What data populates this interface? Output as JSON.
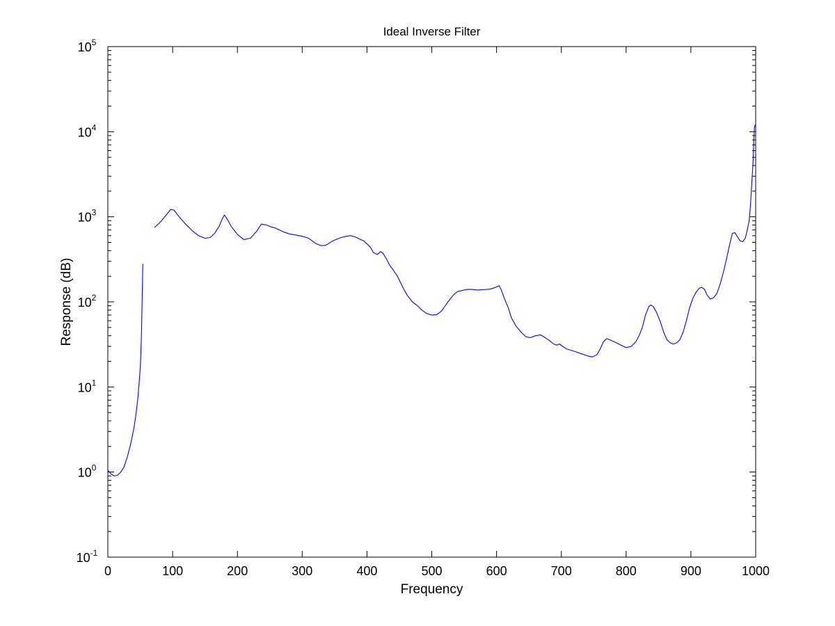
{
  "chart_data": {
    "type": "line",
    "title": "Ideal Inverse Filter",
    "xlabel": "Frequency",
    "ylabel": "Response (dB)",
    "xlim": [
      0,
      1000
    ],
    "ylim": [
      0.1,
      100000
    ],
    "yscale": "log",
    "grid": false,
    "line_color": "#0000ff",
    "x_ticks": [
      {
        "value": 0,
        "label": "0"
      },
      {
        "value": 100,
        "label": "100"
      },
      {
        "value": 200,
        "label": "200"
      },
      {
        "value": 300,
        "label": "300"
      },
      {
        "value": 400,
        "label": "400"
      },
      {
        "value": 500,
        "label": "500"
      },
      {
        "value": 600,
        "label": "600"
      },
      {
        "value": 700,
        "label": "700"
      },
      {
        "value": 800,
        "label": "800"
      },
      {
        "value": 900,
        "label": "900"
      },
      {
        "value": 1000,
        "label": "1000"
      }
    ],
    "y_ticks": [
      {
        "value": 0.1,
        "base": "10",
        "exp": "-1"
      },
      {
        "value": 1,
        "base": "10",
        "exp": "0"
      },
      {
        "value": 10,
        "base": "10",
        "exp": "1"
      },
      {
        "value": 100,
        "base": "10",
        "exp": "2"
      },
      {
        "value": 1000,
        "base": "10",
        "exp": "3"
      },
      {
        "value": 10000,
        "base": "10",
        "exp": "4"
      },
      {
        "value": 100000,
        "base": "10",
        "exp": "5"
      }
    ],
    "series": [
      {
        "segments": [
          {
            "x": [
              0,
              5,
              10,
              15,
              20,
              25,
              30,
              35,
              40,
              43,
              46,
              48,
              50,
              51,
              52,
              53,
              54
            ],
            "y": [
              1.05,
              0.95,
              0.9,
              0.92,
              1.0,
              1.15,
              1.5,
              2.1,
              3.2,
              4.5,
              7.0,
              10.5,
              17,
              26,
              45,
              110,
              280
            ]
          },
          {
            "x": [
              72,
              80,
              90,
              97,
              102,
              110,
              120,
              130,
              140,
              150,
              158,
              165,
              172,
              177,
              180,
              185,
              190,
              200,
              210,
              220,
              230,
              237,
              245,
              252,
              258,
              265,
              272,
              280,
              290,
              300,
              310,
              320,
              328,
              335,
              340,
              345,
              352,
              360,
              368,
              375,
              382,
              388,
              395,
              400,
              405,
              410,
              416,
              421,
              425,
              430,
              435,
              440,
              447,
              455,
              462,
              470,
              478,
              485,
              492,
              500,
              508,
              515,
              520,
              525,
              530,
              535,
              540,
              548,
              555,
              562,
              570,
              578,
              585,
              590,
              595,
              600,
              604,
              607,
              612,
              618,
              623,
              630,
              638,
              645,
              652,
              660,
              668,
              675,
              682,
              688,
              693,
              697,
              702,
              708,
              715,
              722,
              728,
              735,
              742,
              748,
              755,
              760,
              765,
              770,
              778,
              785,
              792,
              800,
              808,
              815,
              820,
              825,
              830,
              835,
              838,
              842,
              847,
              853,
              858,
              863,
              868,
              873,
              878,
              883,
              888,
              893,
              898,
              903,
              908,
              913,
              917,
              921,
              925,
              930,
              935,
              940,
              945,
              950,
              955,
              960,
              964,
              968,
              972,
              976,
              980,
              984,
              987,
              990,
              992,
              994,
              996,
              997,
              998,
              999
            ],
            "y": [
              750,
              850,
              1050,
              1220,
              1200,
              1000,
              820,
              690,
              600,
              560,
              570,
              640,
              780,
              960,
              1050,
              920,
              780,
              620,
              540,
              560,
              680,
              820,
              800,
              760,
              740,
              700,
              660,
              630,
              610,
              590,
              560,
              490,
              460,
              460,
              480,
              510,
              540,
              570,
              590,
              600,
              580,
              550,
              520,
              480,
              440,
              380,
              360,
              390,
              370,
              320,
              270,
              240,
              200,
              150,
              120,
              100,
              90,
              80,
              73,
              70,
              71,
              78,
              88,
              100,
              112,
              124,
              132,
              137,
              140,
              140,
              138,
              139,
              140,
              141,
              145,
              150,
              155,
              140,
              110,
              85,
              65,
              52,
              44,
              39,
              38,
              40,
              41,
              38,
              35,
              32,
              31,
              32,
              30,
              28,
              27,
              26,
              25,
              24,
              23,
              22.5,
              24,
              28,
              34,
              37,
              35,
              33,
              31,
              29,
              30,
              34,
              40,
              50,
              70,
              88,
              92,
              88,
              75,
              58,
              44,
              36,
              33,
              32,
              33,
              36,
              44,
              60,
              85,
              110,
              130,
              145,
              148,
              140,
              120,
              108,
              112,
              125,
              160,
              220,
              320,
              480,
              640,
              650,
              580,
              520,
              510,
              560,
              700,
              900,
              1400,
              2500,
              4500,
              7500,
              11000,
              12000
            ]
          }
        ]
      }
    ]
  }
}
